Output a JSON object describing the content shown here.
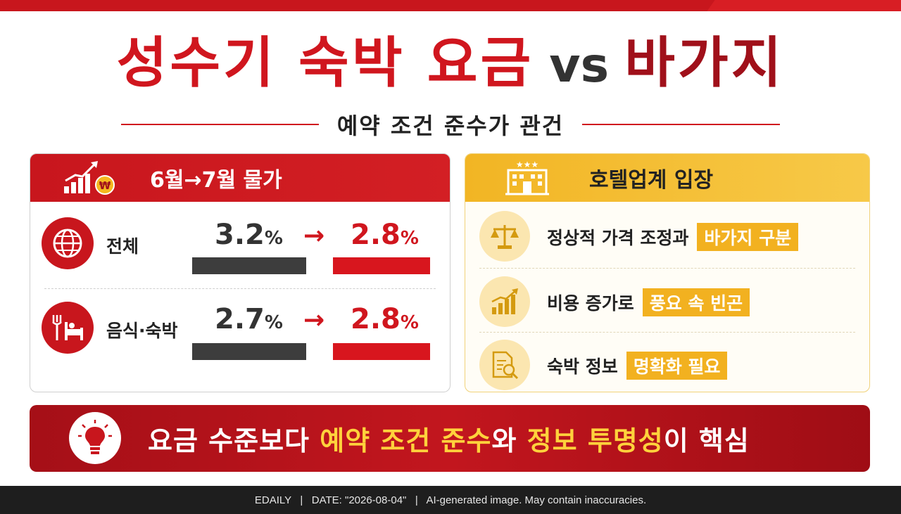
{
  "title": {
    "part1": "성수기 숙박 요금",
    "vs": "vs",
    "part2": "바가지"
  },
  "subtitle": "예약 조건 준수가 관건",
  "left_panel": {
    "header": "6월→7월 물가",
    "header_icon": "growth-chart-won-icon",
    "rows": [
      {
        "label": "전체",
        "icon": "globe-icon",
        "from_value": "3.2",
        "to_value": "2.8",
        "unit": "%"
      },
      {
        "label": "음식·숙박",
        "icon": "fork-bed-icon",
        "from_value": "2.7",
        "to_value": "2.8",
        "unit": "%"
      }
    ],
    "arrow": "→"
  },
  "right_panel": {
    "header": "호텔업계 입장",
    "header_icon": "hotel-stars-icon",
    "items": [
      {
        "icon": "scale-icon",
        "text": "정상적 가격 조정과",
        "highlight": "바가지 구분"
      },
      {
        "icon": "rising-chart-icon",
        "text": "비용 증가로",
        "highlight": "풍요 속 빈곤"
      },
      {
        "icon": "document-search-icon",
        "text": "숙박 정보",
        "highlight": "명확화 필요"
      }
    ]
  },
  "banner": {
    "icon": "lightbulb-icon",
    "t1": "요금 수준보다 ",
    "t2": "예약 조건 준수",
    "t3": "와 ",
    "t4": "정보 투명성",
    "t5": "이 핵심"
  },
  "footer": "EDAILY   |   DATE: \"2026-08-04\"   |   AI-generated image. May contain inaccuracies.",
  "colors": {
    "primary_red": "#d0161e",
    "dark_red": "#a0101a",
    "gold": "#f2b120",
    "bar_dark": "#3d3d3d",
    "banner_yellow": "#ffd23c"
  }
}
